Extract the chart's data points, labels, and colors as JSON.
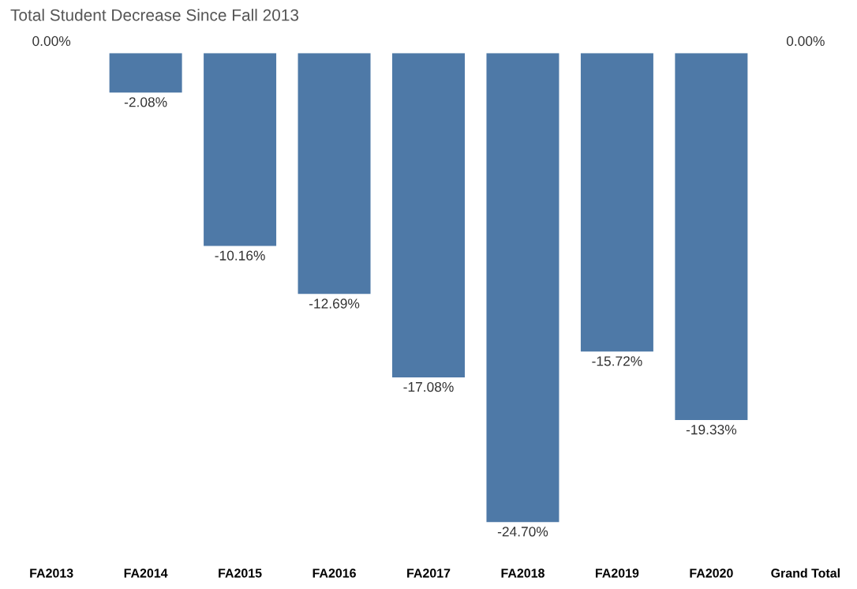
{
  "chart_data": {
    "type": "bar",
    "title": "Total Student Decrease Since Fall 2013",
    "categories": [
      "FA2013",
      "FA2014",
      "FA2015",
      "FA2016",
      "FA2017",
      "FA2018",
      "FA2019",
      "FA2020",
      "Grand Total"
    ],
    "values": [
      0.0,
      -2.08,
      -10.16,
      -12.69,
      -17.08,
      -24.7,
      -15.72,
      -19.33,
      0.0
    ],
    "value_labels": [
      "0.00%",
      "-2.08%",
      "-10.16%",
      "-12.69%",
      "-17.08%",
      "-24.70%",
      "-15.72%",
      "-19.33%",
      "0.00%"
    ],
    "color": "#4e79a7",
    "tick_labels": "x",
    "grid": false,
    "legend": false
  }
}
